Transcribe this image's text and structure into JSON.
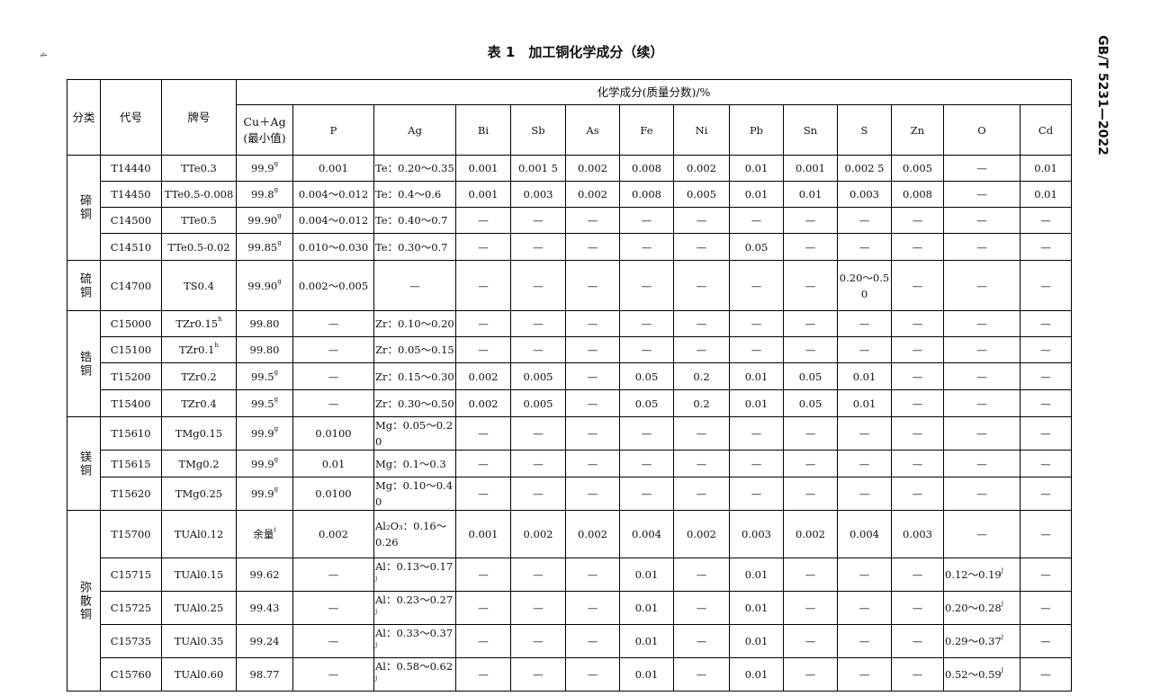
{
  "header": {
    "title": "表 1　加工铜化学成分（续）",
    "standard": "GB/T 5231—2022",
    "page": "4"
  },
  "table": {
    "head": {
      "category": "分类",
      "code": "代号",
      "grade": "牌号",
      "group": "化学成分(质量分数)/%",
      "cu_ag": "Cu＋Ag",
      "cu_ag_note": "(最小值)",
      "elements": [
        "P",
        "Ag",
        "Bi",
        "Sb",
        "As",
        "Fe",
        "Ni",
        "Pb",
        "Sn",
        "S",
        "Zn",
        "O",
        "Cd"
      ]
    },
    "groups": [
      {
        "name": "碲铜",
        "rows": [
          {
            "code": "T14440",
            "grade": "TTe0.3",
            "cells": [
              {
                "text": "99.9",
                "sup": "g"
              },
              "0.001",
              "Te：0.20～0.35",
              "0.001",
              "0.001 5",
              "0.002",
              "0.008",
              "0.002",
              "0.01",
              "0.001",
              "0.002 5",
              "0.005",
              "—",
              "0.01"
            ]
          },
          {
            "code": "T14450",
            "grade": "TTe0.5-0.008",
            "cells": [
              {
                "text": "99.8",
                "sup": "g"
              },
              "0.004～0.012",
              "Te：0.4～0.6",
              "0.001",
              "0.003",
              "0.002",
              "0.008",
              "0.005",
              "0.01",
              "0.01",
              "0.003",
              "0.008",
              "—",
              "0.01"
            ]
          },
          {
            "code": "C14500",
            "grade": "TTe0.5",
            "cells": [
              {
                "text": "99.90",
                "sup": "g"
              },
              "0.004～0.012",
              "Te：0.40～0.7",
              "—",
              "—",
              "—",
              "—",
              "—",
              "—",
              "—",
              "—",
              "—",
              "—",
              "—"
            ]
          },
          {
            "code": "C14510",
            "grade": "TTe0.5-0.02",
            "cells": [
              {
                "text": "99.85",
                "sup": "g"
              },
              "0.010～0.030",
              "Te：0.30～0.7",
              "—",
              "—",
              "—",
              "—",
              "—",
              "0.05",
              "—",
              "—",
              "—",
              "—",
              "—"
            ]
          }
        ]
      },
      {
        "name": "硫铜",
        "rows": [
          {
            "code": "C14700",
            "grade": "TS0.4",
            "cells": [
              {
                "text": "99.90",
                "sup": "g"
              },
              "0.002～0.005",
              "—",
              "—",
              "—",
              "—",
              "—",
              "—",
              "—",
              "—",
              "0.20～0.50",
              "—",
              "—",
              "—"
            ]
          }
        ]
      },
      {
        "name": "锆铜",
        "rows": [
          {
            "code": "C15000",
            "grade": {
              "text": "TZr0.15",
              "sup": "h"
            },
            "cells": [
              "99.80",
              "—",
              "Zr：0.10～0.20",
              "—",
              "—",
              "—",
              "—",
              "—",
              "—",
              "—",
              "—",
              "—",
              "—",
              "—"
            ]
          },
          {
            "code": "C15100",
            "grade": {
              "text": "TZr0.1",
              "sup": "h"
            },
            "cells": [
              "99.80",
              "—",
              "Zr：0.05～0.15",
              "—",
              "—",
              "—",
              "—",
              "—",
              "—",
              "—",
              "—",
              "—",
              "—",
              "—"
            ]
          },
          {
            "code": "T15200",
            "grade": "TZr0.2",
            "cells": [
              {
                "text": "99.5",
                "sup": "g"
              },
              "—",
              "Zr：0.15～0.30",
              "0.002",
              "0.005",
              "—",
              "0.05",
              "0.2",
              "0.01",
              "0.05",
              "0.01",
              "—",
              "—",
              "—"
            ]
          },
          {
            "code": "T15400",
            "grade": "TZr0.4",
            "cells": [
              {
                "text": "99.5",
                "sup": "g"
              },
              "—",
              "Zr：0.30～0.50",
              "0.002",
              "0.005",
              "—",
              "0.05",
              "0.2",
              "0.01",
              "0.05",
              "0.01",
              "—",
              "—",
              "—"
            ]
          }
        ]
      },
      {
        "name": "镁铜",
        "rows": [
          {
            "code": "T15610",
            "grade": "TMg0.15",
            "cells": [
              {
                "text": "99.9",
                "sup": "g"
              },
              "0.0100",
              "Mg：0.05～0.20",
              "—",
              "—",
              "—",
              "—",
              "—",
              "—",
              "—",
              "—",
              "—",
              "—",
              "—"
            ]
          },
          {
            "code": "T15615",
            "grade": "TMg0.2",
            "cells": [
              {
                "text": "99.9",
                "sup": "g"
              },
              "0.01",
              "Mg：0.1～0.3",
              "—",
              "—",
              "—",
              "—",
              "—",
              "—",
              "—",
              "—",
              "—",
              "—",
              "—"
            ]
          },
          {
            "code": "T15620",
            "grade": "TMg0.25",
            "cells": [
              {
                "text": "99.9",
                "sup": "g"
              },
              "0.0100",
              "Mg：0.10～0.40",
              "—",
              "—",
              "—",
              "—",
              "—",
              "—",
              "—",
              "—",
              "—",
              "—",
              "—"
            ]
          }
        ]
      },
      {
        "name": "弥散铜",
        "rows": [
          {
            "code": "T15700",
            "grade": "TUAl0.12",
            "cells": [
              {
                "text": "余量",
                "sup": "i"
              },
              "0.002",
              "Al₂O₃：0.16～0.26",
              "0.001",
              "0.002",
              "0.002",
              "0.004",
              "0.002",
              "0.003",
              "0.002",
              "0.004",
              "0.003",
              "—",
              "—"
            ]
          },
          {
            "code": "C15715",
            "grade": "TUAl0.15",
            "cells": [
              "99.62",
              "—",
              {
                "text": "Al：0.13～0.17",
                "sup": "j"
              },
              "—",
              "—",
              "—",
              "0.01",
              "—",
              "0.01",
              "—",
              "—",
              "—",
              {
                "text": "0.12～0.19",
                "sup": "j"
              },
              "—"
            ]
          },
          {
            "code": "C15725",
            "grade": "TUAl0.25",
            "cells": [
              "99.43",
              "—",
              {
                "text": "Al：0.23～0.27",
                "sup": "j"
              },
              "—",
              "—",
              "—",
              "0.01",
              "—",
              "0.01",
              "—",
              "—",
              "—",
              {
                "text": "0.20～0.28",
                "sup": "j"
              },
              "—"
            ]
          },
          {
            "code": "C15735",
            "grade": "TUAl0.35",
            "cells": [
              "99.24",
              "—",
              {
                "text": "Al：0.33～0.37",
                "sup": "j"
              },
              "—",
              "—",
              "—",
              "0.01",
              "—",
              "0.01",
              "—",
              "—",
              "—",
              {
                "text": "0.29～0.37",
                "sup": "j"
              },
              "—"
            ]
          },
          {
            "code": "C15760",
            "grade": "TUAl0.60",
            "cells": [
              "98.77",
              "—",
              {
                "text": "Al：0.58～0.62",
                "sup": "j"
              },
              "—",
              "—",
              "—",
              "0.01",
              "—",
              "0.01",
              "—",
              "—",
              "—",
              {
                "text": "0.52～0.59",
                "sup": "j"
              },
              "—"
            ]
          }
        ]
      }
    ]
  }
}
